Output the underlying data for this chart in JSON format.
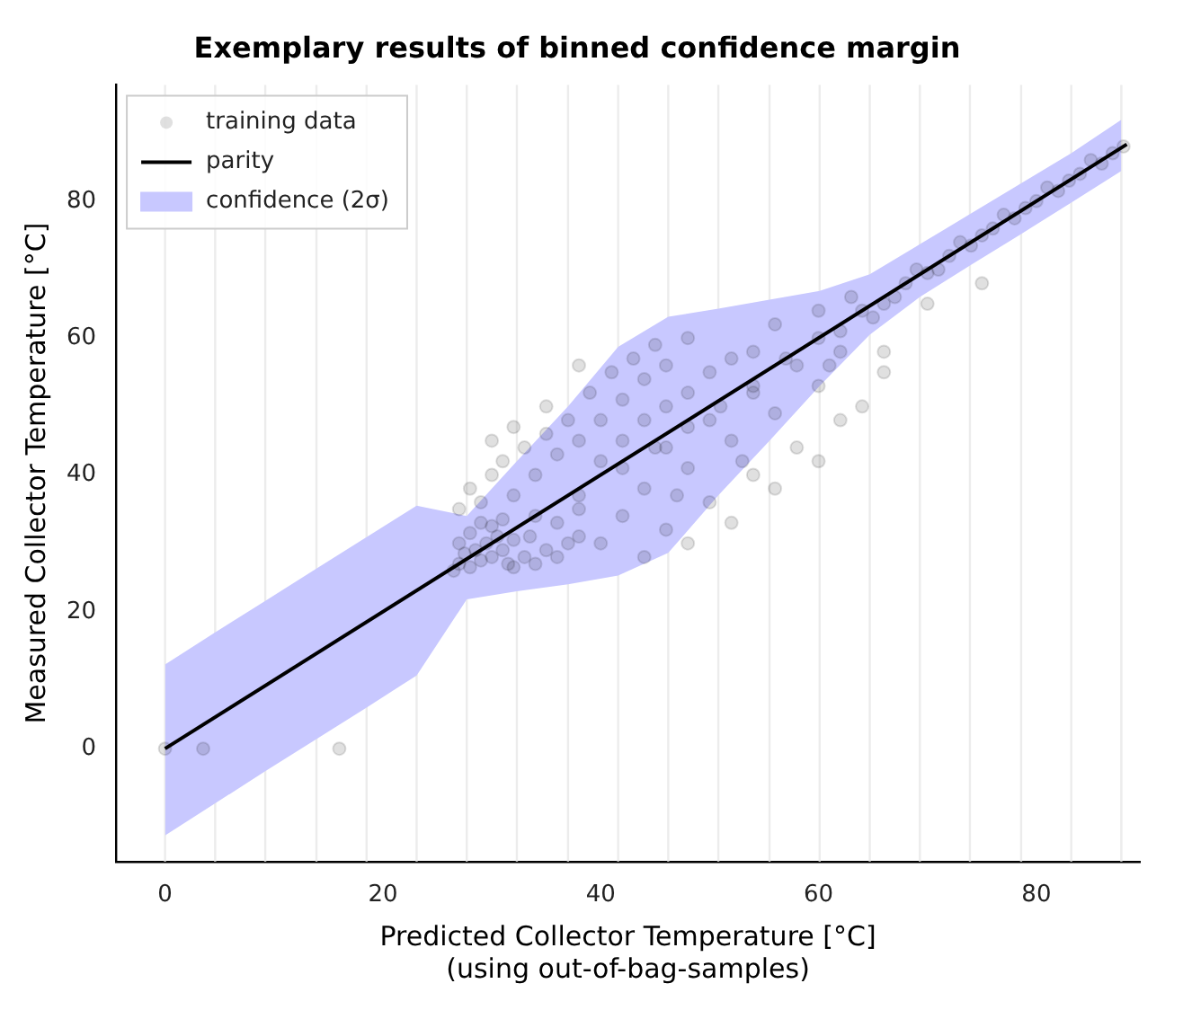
{
  "chart_data": {
    "type": "scatter",
    "title": "Exemplary results of binned confidence margin",
    "xlabel": "Predicted Collector Temperature [°C]\n(using out-of-bag-samples)",
    "ylabel": "Measured Collector Temperature [°C]",
    "xlim": [
      -4.5,
      89.5
    ],
    "ylim": [
      -16.5,
      97
    ],
    "xticks": [
      0,
      20,
      40,
      60,
      80
    ],
    "yticks": [
      0,
      20,
      40,
      60,
      80
    ],
    "grid": false,
    "legend": "top left",
    "ref_lines": [
      {
        "axis": "x",
        "value": 0,
        "color": "#ececec"
      },
      {
        "axis": "x",
        "value": 4.6,
        "color": "#ececec"
      },
      {
        "axis": "x",
        "value": 9.2,
        "color": "#ececec"
      },
      {
        "axis": "x",
        "value": 13.9,
        "color": "#ececec"
      },
      {
        "axis": "x",
        "value": 18.5,
        "color": "#ececec"
      },
      {
        "axis": "x",
        "value": 23.1,
        "color": "#ececec"
      },
      {
        "axis": "x",
        "value": 27.7,
        "color": "#ececec"
      },
      {
        "axis": "x",
        "value": 32.3,
        "color": "#ececec"
      },
      {
        "axis": "x",
        "value": 37.0,
        "color": "#ececec"
      },
      {
        "axis": "x",
        "value": 41.6,
        "color": "#ececec"
      },
      {
        "axis": "x",
        "value": 46.2,
        "color": "#ececec"
      },
      {
        "axis": "x",
        "value": 50.8,
        "color": "#ececec"
      },
      {
        "axis": "x",
        "value": 55.5,
        "color": "#ececec"
      },
      {
        "axis": "x",
        "value": 60.1,
        "color": "#ececec"
      },
      {
        "axis": "x",
        "value": 64.7,
        "color": "#ececec"
      },
      {
        "axis": "x",
        "value": 69.3,
        "color": "#ececec"
      },
      {
        "axis": "x",
        "value": 73.9,
        "color": "#ececec"
      },
      {
        "axis": "x",
        "value": 78.6,
        "color": "#ececec"
      },
      {
        "axis": "x",
        "value": 83.2,
        "color": "#ececec"
      },
      {
        "axis": "x",
        "value": 87.8,
        "color": "#ececec"
      }
    ],
    "series": [
      {
        "name": "training data",
        "type": "scatter",
        "marker": "circle",
        "color": "#000000",
        "x": [
          0,
          3.5,
          16,
          26.5,
          27,
          27.5,
          28,
          28.5,
          29,
          29.5,
          30,
          30.5,
          31,
          31.5,
          32,
          27,
          28,
          29,
          30,
          31,
          32,
          33,
          33.5,
          34,
          35,
          36,
          37,
          38,
          27,
          28,
          29,
          30,
          31,
          32,
          33,
          34,
          35,
          36,
          37,
          38,
          39,
          40,
          41,
          42,
          43,
          44,
          45,
          46,
          38,
          35,
          32,
          30,
          40,
          42,
          44,
          46,
          48,
          50,
          52,
          54,
          48,
          56,
          60,
          36,
          38,
          40,
          42,
          44,
          46,
          48,
          50,
          52,
          54,
          56,
          58,
          60,
          62,
          64,
          66,
          44,
          48,
          52,
          56,
          60,
          46,
          50,
          54,
          58,
          62,
          47,
          53,
          34,
          38,
          42,
          45,
          48,
          51,
          54,
          57,
          60,
          62,
          64,
          66,
          68,
          70,
          72,
          74,
          76,
          78,
          80,
          82,
          84,
          86,
          88,
          65,
          67,
          69,
          71,
          73,
          75,
          77,
          79,
          81,
          83,
          85,
          87,
          63,
          70,
          75,
          66,
          61
        ],
        "values": [
          0,
          0,
          0,
          26,
          27,
          28.5,
          26.5,
          29,
          27.5,
          30,
          28,
          31,
          29,
          27,
          30.5,
          30,
          31.5,
          33,
          32.5,
          33.5,
          26.5,
          28,
          31,
          27,
          29,
          28,
          30,
          31,
          35,
          38,
          36,
          40,
          42,
          37,
          44,
          40,
          46,
          43,
          48,
          45,
          52,
          48,
          55,
          51,
          57,
          54,
          59,
          56,
          56,
          50,
          47,
          45,
          42,
          45,
          48,
          50,
          52,
          55,
          57,
          58,
          60,
          62,
          64,
          33,
          35,
          30,
          34,
          28,
          32,
          30,
          36,
          33,
          40,
          38,
          44,
          42,
          48,
          50,
          55,
          38,
          41,
          45,
          49,
          53,
          44,
          48,
          52,
          56,
          58,
          37,
          42,
          34,
          37,
          41,
          44,
          47,
          50,
          53,
          57,
          60,
          61,
          64,
          65,
          68,
          69.5,
          72,
          73.5,
          76,
          77.5,
          80,
          81.5,
          84,
          85.5,
          88,
          63,
          66,
          70,
          70,
          74,
          75,
          78,
          79,
          82,
          83,
          86,
          87,
          66,
          65,
          68,
          58,
          56
        ]
      },
      {
        "name": "parity",
        "type": "line",
        "marker": "none",
        "color": "#000000",
        "x": [
          0,
          88.3
        ],
        "values": [
          0,
          88.3
        ]
      },
      {
        "name": "confidence (2σ)",
        "type": "line",
        "color": "#c8c8ff",
        "x": [
          0,
          4.6,
          9.2,
          13.9,
          18.5,
          23.1,
          27.7,
          32.3,
          37.0,
          41.6,
          46.2,
          50.8,
          55.5,
          60.1,
          64.7,
          69.3,
          73.9,
          78.6,
          83.2,
          87.8
        ],
        "values": [
          null,
          null,
          null,
          null,
          null,
          null,
          null,
          null,
          null,
          null,
          null,
          null,
          null,
          null,
          null,
          null,
          null,
          null,
          null,
          null
        ],
        "lower": [
          -12.7,
          -8,
          -3.3,
          1.4,
          6,
          10.7,
          21.8,
          23,
          24,
          25.3,
          28.6,
          37,
          45,
          53,
          60.5,
          66,
          70.6,
          75.2,
          79.8,
          84.4
        ],
        "upper": [
          12.3,
          17,
          21.6,
          26.3,
          30.9,
          35.5,
          34,
          42,
          50,
          58.7,
          63.1,
          64.3,
          65.6,
          66.9,
          69.3,
          73.7,
          78.1,
          82.6,
          87,
          91.9
        ]
      }
    ]
  }
}
